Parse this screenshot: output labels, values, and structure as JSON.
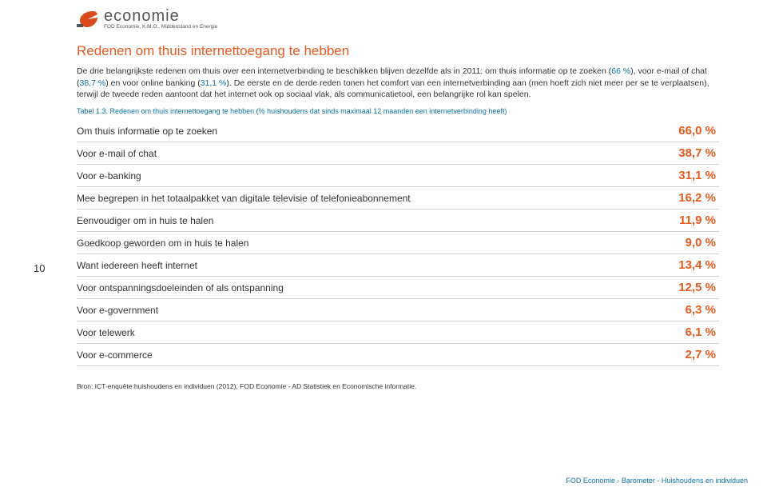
{
  "colors": {
    "orange": "#e65a1f",
    "blue": "#0a72a3",
    "text": "#333333",
    "border": "#d0d0d0"
  },
  "logo": {
    "main": "economie",
    "sub": "FOD Economie, K.M.O., Middenstand en Energie"
  },
  "heading": "Redenen om thuis internettoegang te hebben",
  "para": {
    "t1": "De drie belangrijkste redenen om thuis over een internetverbinding te beschikken blijven dezelfde als in 2011: om thuis informatie op te zoeken (",
    "p66": "66 %",
    "t2": "), voor e-mail of chat (",
    "p387": "38,7 %",
    "t3": ") en voor online banking (",
    "p311": "31,1 %",
    "t4": "). De eerste en de derde reden tonen het comfort van een internetverbinding aan (men hoeft zich niet meer per se te verplaatsen), terwijl de tweede reden aantoont dat het internet ook op sociaal vlak, als communicatietool, een belangrijke rol kan spelen."
  },
  "caption": "Tabel 1.3. Redenen om thuis internettoegang te hebben (% huishoudens dat sinds maximaal 12 maanden een internetverbinding heeft)",
  "table": {
    "rows": [
      {
        "label": "Om thuis informatie op te zoeken",
        "value": "66,0 %"
      },
      {
        "label": "Voor e-mail of chat",
        "value": "38,7 %"
      },
      {
        "label": "Voor e-banking",
        "value": "31,1 %"
      },
      {
        "label": "Mee begrepen in het totaalpakket van digitale televisie of telefonieabonnement",
        "value": "16,2 %"
      },
      {
        "label": "Eenvoudiger om in huis te halen",
        "value": "11,9 %"
      },
      {
        "label": "Goedkoop geworden om in huis te halen",
        "value": "9,0 %"
      },
      {
        "label": "Want iedereen heeft internet",
        "value": "13,4 %"
      },
      {
        "label": "Voor ontspanningsdoeleinden of als ontspanning",
        "value": "12,5 %"
      },
      {
        "label": "Voor e-government",
        "value": "6,3 %"
      },
      {
        "label": "Voor telewerk",
        "value": "6,1 %"
      },
      {
        "label": "Voor e-commerce",
        "value": "2,7 %"
      }
    ]
  },
  "page_num": "10",
  "source": "Bron: ICT-enquête huishoudens en individuen (2012), FOD Economie - AD Statistiek en Economische informatie.",
  "footer": "FOD Economie - Barometer - Huishoudens en individuen"
}
